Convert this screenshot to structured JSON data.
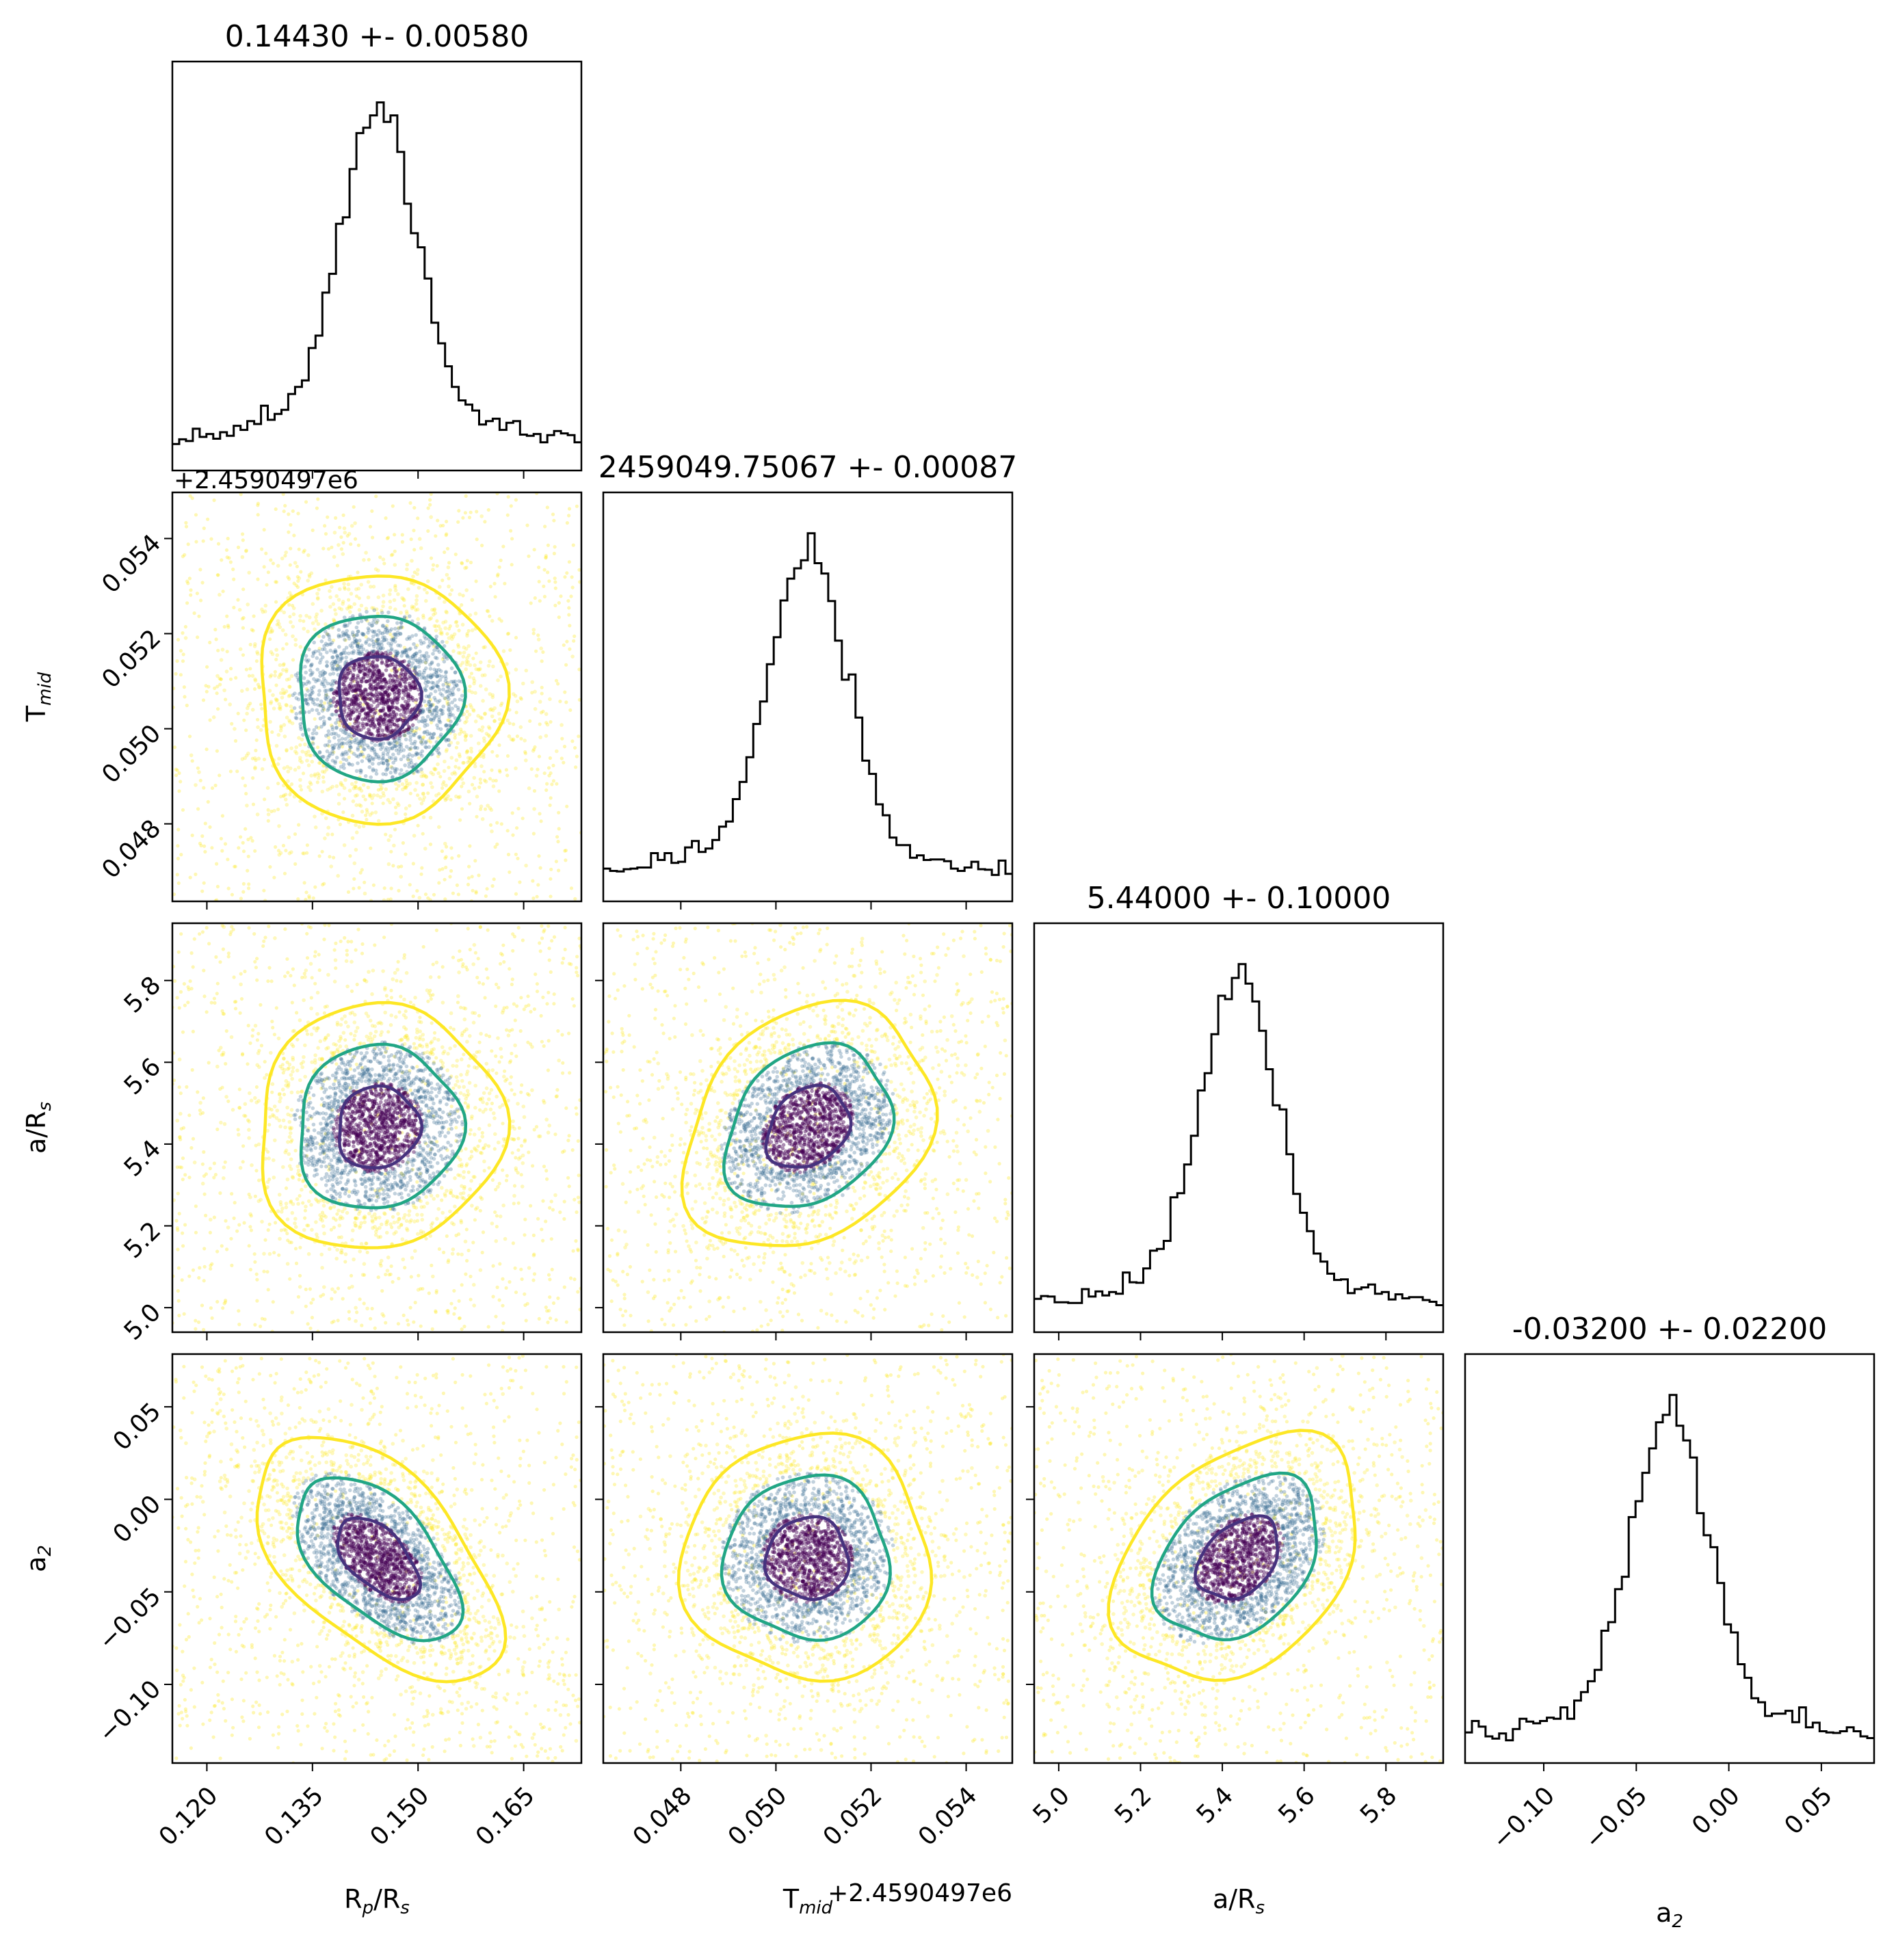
{
  "chart_data": {
    "type": "corner",
    "parameters": [
      {
        "key": "rprs",
        "label": "R",
        "label_sub": "p",
        "label_mid": "/R",
        "label_sub2": "s",
        "value": 0.1443,
        "error": 0.0058,
        "range": [
          0.1151,
          0.1732
        ],
        "ticks": [
          "0.120",
          "0.135",
          "0.150",
          "0.165"
        ],
        "tick_values": [
          0.12,
          0.135,
          0.15,
          0.165
        ],
        "title": "0.14430 +- 0.00580"
      },
      {
        "key": "tmid",
        "label": "T",
        "label_sub": "mid",
        "label_mid": "",
        "label_sub2": "",
        "value": 0.05067,
        "error": 0.00087,
        "range": [
          0.04637,
          0.05497
        ],
        "ticks": [
          "0.048",
          "0.050",
          "0.052",
          "0.054"
        ],
        "tick_values": [
          0.048,
          0.05,
          0.052,
          0.054
        ],
        "title": "2459049.75067 +- 0.00087",
        "offset": "+2.4590497e6"
      },
      {
        "key": "ars",
        "label": "a/R",
        "label_sub": "s",
        "label_mid": "",
        "label_sub2": "",
        "value": 5.44,
        "error": 0.1,
        "range": [
          4.94,
          5.94
        ],
        "ticks": [
          "5.0",
          "5.2",
          "5.4",
          "5.6",
          "5.8"
        ],
        "tick_values": [
          5.0,
          5.2,
          5.4,
          5.6,
          5.8
        ],
        "title": "5.44000 +- 0.10000"
      },
      {
        "key": "a2",
        "label": "a",
        "label_sub": "2",
        "label_mid": "",
        "label_sub2": "",
        "value": -0.032,
        "error": 0.022,
        "range": [
          -0.1425,
          0.0785
        ],
        "ticks": [
          "−0.10",
          "−0.05",
          "0.00",
          "0.05"
        ],
        "tick_values": [
          -0.1,
          -0.05,
          0.0,
          0.05
        ],
        "title": "-0.03200 +- 0.02200"
      }
    ],
    "correlations": {
      "1-0": 0.0,
      "2-0": 0.05,
      "2-1": 0.25,
      "3-0": -0.55,
      "3-1": 0.0,
      "3-2": 0.35
    },
    "contour_levels_sigma": [
      1,
      2,
      3
    ],
    "colors": {
      "contour_1": "#46327e",
      "contour_2": "#21a685",
      "contour_3": "#fde725",
      "hist": "#000000",
      "scatter_inner": "#440154",
      "scatter_mid": "#31688e",
      "scatter_outer": "#fde725"
    }
  }
}
